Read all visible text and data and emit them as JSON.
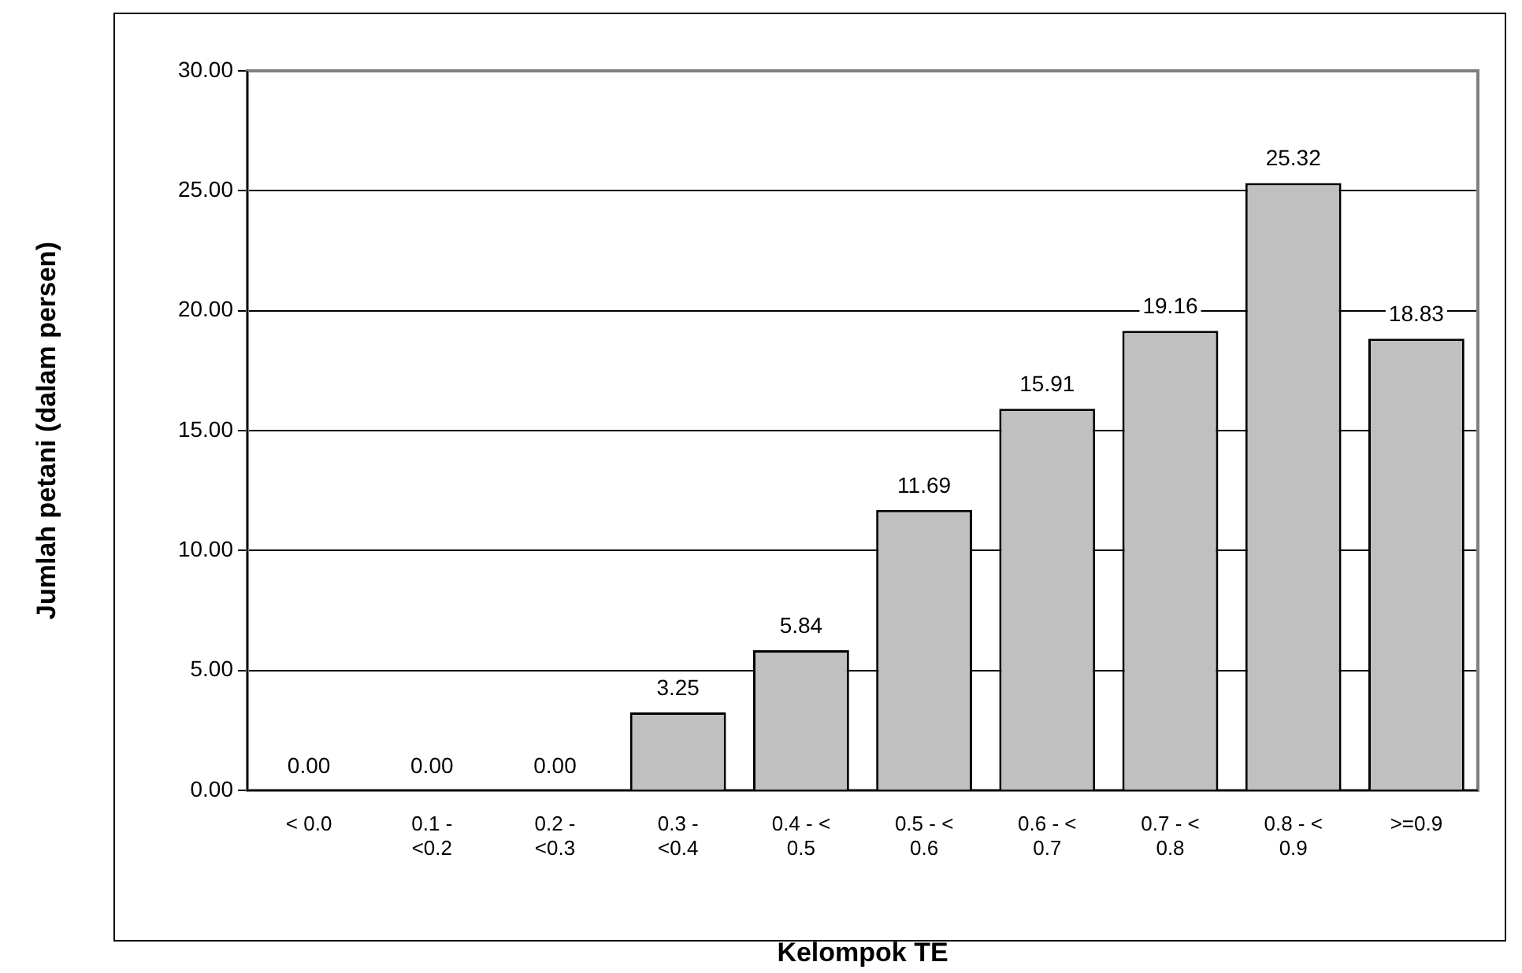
{
  "chart_data": {
    "type": "bar",
    "xlabel": "Kelompok TE",
    "ylabel": "Jumlah petani (dalam persen)",
    "categories": [
      "< 0.0",
      "0.1 - <0.2",
      "0.2 - <0.3",
      "0.3 - <0.4",
      "0.4 - < 0.5",
      "0.5 - < 0.6",
      "0.6 - < 0.7",
      "0.7 - < 0.8",
      "0.8 - < 0.9",
      ">=0.9"
    ],
    "values": [
      0,
      0,
      0,
      3.25,
      5.84,
      11.69,
      15.91,
      19.16,
      25.32,
      18.83
    ],
    "value_labels": [
      "0.00",
      "0.00",
      "0.00",
      "3.25",
      "5.84",
      "11.69",
      "15.91",
      "19.16",
      "25.32",
      "18.83"
    ],
    "color": "#c0c0c0",
    "ylim": [
      0,
      30
    ],
    "yticks": [
      {
        "value": 0,
        "label": "0.00"
      },
      {
        "value": 5,
        "label": "5.00"
      },
      {
        "value": 10,
        "label": "10.00"
      },
      {
        "value": 15,
        "label": "15.00"
      },
      {
        "value": 20,
        "label": "20.00"
      },
      {
        "value": 25,
        "label": "25.00"
      },
      {
        "value": 30,
        "label": "30.00"
      }
    ],
    "grid": "y",
    "legend": false
  }
}
